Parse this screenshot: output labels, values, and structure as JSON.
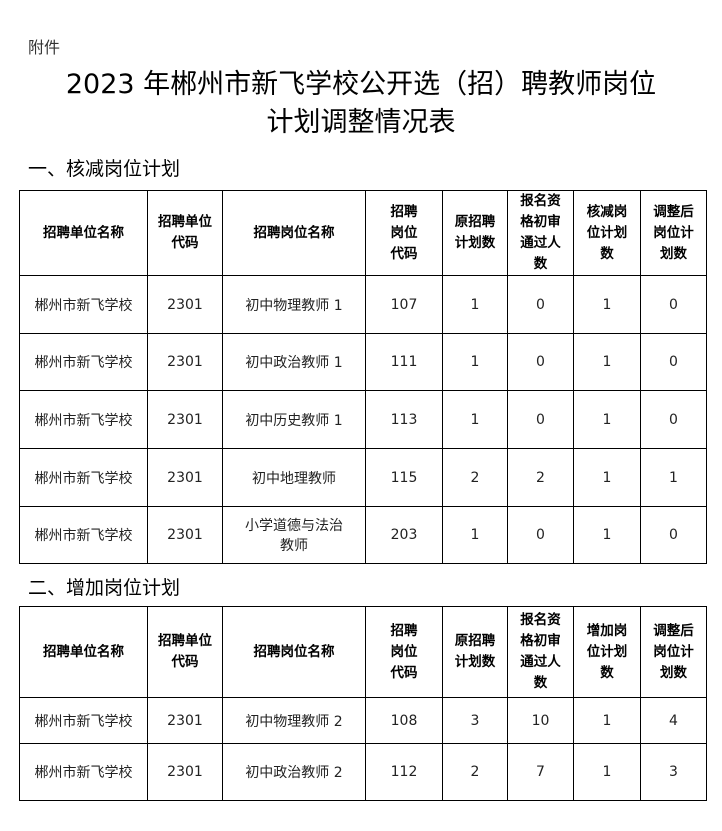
{
  "attachment": "附件",
  "title_line1": "2023 年郴州市新飞学校公开选（招）聘教师岗位",
  "title_line2": "计划调整情况表",
  "section1": {
    "heading": "一、核减岗位计划",
    "headers": [
      "招聘单位名称",
      "招聘单位\n代码",
      "招聘岗位名称",
      "招聘\n岗位\n代码",
      "原招聘\n计划数",
      "报名资\n格初审\n通过人\n数",
      "核减岗\n位计划\n数",
      "调整后\n岗位计\n划数"
    ],
    "rows": [
      [
        "郴州市新飞学校",
        "2301",
        "初中物理教师 1",
        "107",
        "1",
        "0",
        "1",
        "0"
      ],
      [
        "郴州市新飞学校",
        "2301",
        "初中政治教师 1",
        "111",
        "1",
        "0",
        "1",
        "0"
      ],
      [
        "郴州市新飞学校",
        "2301",
        "初中历史教师 1",
        "113",
        "1",
        "0",
        "1",
        "0"
      ],
      [
        "郴州市新飞学校",
        "2301",
        "初中地理教师",
        "115",
        "2",
        "2",
        "1",
        "1"
      ],
      [
        "郴州市新飞学校",
        "2301",
        "小学道德与法治\n教师",
        "203",
        "1",
        "0",
        "1",
        "0"
      ]
    ]
  },
  "section2": {
    "heading": "二、增加岗位计划",
    "headers": [
      "招聘单位名称",
      "招聘单位\n代码",
      "招聘岗位名称",
      "招聘\n岗位\n代码",
      "原招聘\n计划数",
      "报名资\n格初审\n通过人\n数",
      "增加岗\n位计划\n数",
      "调整后\n岗位计\n划数"
    ],
    "rows": [
      [
        "郴州市新飞学校",
        "2301",
        "初中物理教师 2",
        "108",
        "3",
        "10",
        "1",
        "4"
      ],
      [
        "郴州市新飞学校",
        "2301",
        "初中政治教师 2",
        "112",
        "2",
        "7",
        "1",
        "3"
      ]
    ]
  }
}
